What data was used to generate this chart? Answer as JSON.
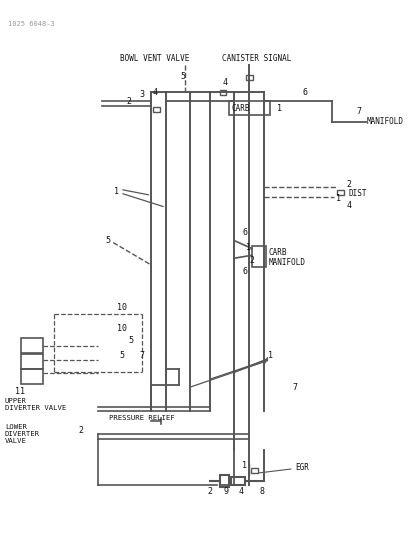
{
  "title": "1025 6048-3",
  "background_color": "#ffffff",
  "line_color": "#555555",
  "text_color": "#111111",
  "labels": {
    "bowl_vent_valve": "BOWL VENT VALVE",
    "canister_signal": "CANISTER SIGNAL",
    "manifold_top": "MANIFOLD",
    "dist": "DIST",
    "carb_top": "CARB",
    "carb_mid": "CARB",
    "manifold_mid": "MANIFOLD",
    "upper_diverter": "UPPER\nDIVERTER VALVE",
    "pressure_relief": "PRESSURE RELIEF",
    "lower_diverter": "LOWER\nDIVERTER\nVALVE",
    "egr": "EGR"
  },
  "figsize": [
    4.1,
    5.33
  ],
  "dpi": 100
}
